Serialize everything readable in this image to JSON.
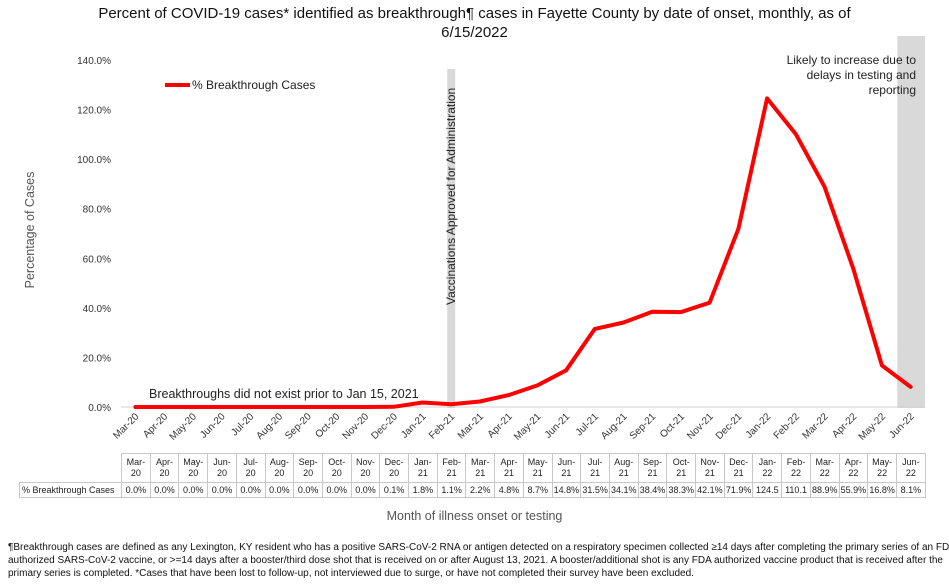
{
  "title_lines": [
    "Percent of COVID-19 cases* identified as breakthrough¶ cases in Fayette County by date of onset, monthly, as of",
    "6/15/2022"
  ],
  "chart_data": {
    "type": "line",
    "categories": [
      "Mar-20",
      "Apr-20",
      "May-20",
      "Jun-20",
      "Jul-20",
      "Aug-20",
      "Sep-20",
      "Oct-20",
      "Nov-20",
      "Dec-20",
      "Jan-21",
      "Feb-21",
      "Mar-21",
      "Apr-21",
      "May-21",
      "Jun-21",
      "Jul-21",
      "Aug-21",
      "Sep-21",
      "Oct-21",
      "Nov-21",
      "Dec-21",
      "Jan-22",
      "Feb-22",
      "Mar-22",
      "Apr-22",
      "May-22",
      "Jun-22"
    ],
    "series": [
      {
        "name": "% Breakthrough Cases",
        "values": [
          0.0,
          0.0,
          0.0,
          0.0,
          0.0,
          0.0,
          0.0,
          0.0,
          0.0,
          0.1,
          1.8,
          1.1,
          2.2,
          4.8,
          8.7,
          14.8,
          31.5,
          34.1,
          38.4,
          38.3,
          42.1,
          71.9,
          124.5,
          110.1,
          88.9,
          55.9,
          16.8,
          8.1
        ],
        "color": "#ff0000"
      }
    ],
    "table_values": [
      "0.0%",
      "0.0%",
      "0.0%",
      "0.0%",
      "0.0%",
      "0.0%",
      "0.0%",
      "0.0%",
      "0.0%",
      "0.1%",
      "1.8%",
      "1.1%",
      "2.2%",
      "4.8%",
      "8.7%",
      "14.8%",
      "31.5%",
      "34.1%",
      "38.4%",
      "38.3%",
      "42.1%",
      "71.9%",
      "124.5",
      "110.1",
      "88.9%",
      "55.9%",
      "16.8%",
      "8.1%"
    ],
    "ylim": [
      0,
      140
    ],
    "yticks": [
      "0.0%",
      "20.0%",
      "40.0%",
      "60.0%",
      "80.0%",
      "100.0%",
      "120.0%",
      "140.0%"
    ],
    "ylabel": "Percentage of Cases",
    "xlabel": "Month of illness onset or testing",
    "legend": "top-left",
    "grid": false,
    "annotations": {
      "vaccine_bar_label": "Vaccinations Approved for Administration",
      "vaccine_bar_category": "Feb-21",
      "no_breakthrough_label": "Breakthroughs did not exist prior to Jan 15, 2021",
      "shaded_region_category": "Jun-22",
      "shaded_region_label": [
        "Likely to increase due to",
        "delays in testing and",
        "reporting"
      ],
      "shade_color": "#d9d9d9"
    }
  },
  "footnote_lines": [
    "¶Breakthrough cases are defined as any Lexington, KY resident who has a positive SARS-CoV-2 RNA or antigen detected on a respiratory specimen collected ≥14 days after completing the primary series of an FDA-",
    "authorized SARS-CoV-2 vaccine, or >=14 days after a booster/third dose shot that is received on or after August 13, 2021.  A booster/additional shot is any FDA authorized vaccine product that is received after the",
    "primary series is completed. *Cases that have been lost to follow-up, not interviewed due to surge, or have not completed their survey have been excluded."
  ]
}
